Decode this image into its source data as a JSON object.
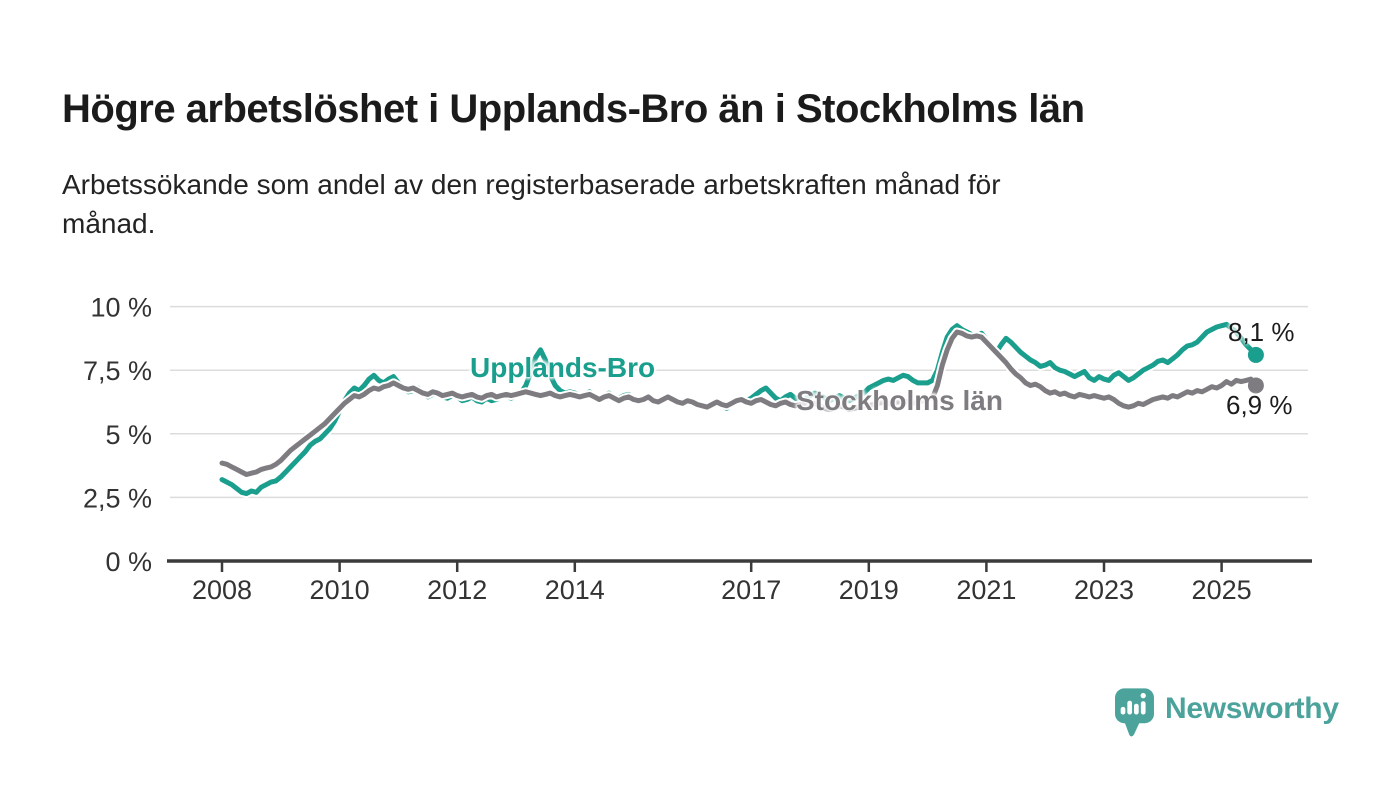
{
  "chart_data": {
    "type": "line",
    "title": "Högre arbetslöshet i Upplands-Bro än i Stockholms län",
    "subtitle": "Arbetssökande som andel av den registerbaserade arbetskraften månad för månad.",
    "subtitle_lines": [
      "Arbetssökande som andel av den registerbaserade arbetskraften månad för",
      "månad."
    ],
    "frequency": "monthly",
    "start_month": "2008-01",
    "end_month": "2025-08",
    "grid": true,
    "legend": "inline-labels",
    "y_axis": {
      "range": [
        0,
        10
      ],
      "ticks": [
        {
          "value": 10,
          "label": "10 %"
        },
        {
          "value": 7.5,
          "label": "7,5 %"
        },
        {
          "value": 5,
          "label": "5 %"
        },
        {
          "value": 2.5,
          "label": "2,5 %"
        },
        {
          "value": 0,
          "label": "0 %"
        }
      ]
    },
    "x_axis": {
      "ticks": [
        {
          "year": 2008,
          "label": "2008"
        },
        {
          "year": 2010,
          "label": "2010"
        },
        {
          "year": 2012,
          "label": "2012"
        },
        {
          "year": 2014,
          "label": "2014"
        },
        {
          "year": 2017,
          "label": "2017"
        },
        {
          "year": 2019,
          "label": "2019"
        },
        {
          "year": 2021,
          "label": "2021"
        },
        {
          "year": 2023,
          "label": "2023"
        },
        {
          "year": 2025,
          "label": "2025"
        }
      ]
    },
    "series": [
      {
        "name": "Upplands-Bro",
        "color": "#1a9e8d",
        "end_value": 8.1,
        "end_value_label": "8,1 %",
        "values": [
          3.2,
          3.1,
          3.0,
          2.85,
          2.7,
          2.65,
          2.75,
          2.7,
          2.9,
          3.0,
          3.1,
          3.15,
          3.3,
          3.5,
          3.7,
          3.9,
          4.1,
          4.3,
          4.55,
          4.7,
          4.8,
          5.0,
          5.2,
          5.5,
          5.9,
          6.3,
          6.6,
          6.8,
          6.7,
          6.9,
          7.15,
          7.3,
          7.1,
          7.0,
          7.15,
          7.25,
          7.0,
          6.85,
          6.65,
          6.7,
          6.8,
          6.6,
          6.45,
          6.55,
          6.6,
          6.45,
          6.4,
          6.5,
          6.45,
          6.3,
          6.35,
          6.45,
          6.3,
          6.25,
          6.4,
          6.3,
          6.35,
          6.45,
          6.5,
          6.4,
          6.5,
          6.6,
          6.9,
          7.4,
          8.0,
          8.3,
          7.9,
          7.3,
          6.9,
          6.7,
          6.6,
          6.65,
          6.6,
          6.5,
          6.55,
          6.65,
          6.5,
          6.4,
          6.5,
          6.6,
          6.45,
          6.4,
          6.5,
          6.55,
          6.4,
          6.3,
          6.4,
          6.5,
          6.35,
          6.3,
          6.4,
          6.5,
          6.4,
          6.3,
          6.2,
          6.3,
          6.2,
          6.1,
          6.05,
          6.0,
          6.1,
          6.2,
          6.1,
          6.0,
          6.15,
          6.3,
          6.4,
          6.3,
          6.4,
          6.55,
          6.7,
          6.8,
          6.6,
          6.4,
          6.3,
          6.45,
          6.55,
          6.4,
          6.3,
          6.4,
          6.5,
          6.6,
          6.5,
          6.4,
          6.3,
          6.4,
          6.5,
          6.4,
          6.3,
          6.4,
          6.5,
          6.6,
          6.8,
          6.9,
          7.0,
          7.1,
          7.15,
          7.1,
          7.2,
          7.3,
          7.25,
          7.1,
          7.0,
          7.0,
          7.0,
          7.1,
          7.5,
          8.2,
          8.8,
          9.1,
          9.25,
          9.1,
          9.0,
          8.9,
          8.85,
          8.95,
          8.7,
          8.45,
          8.2,
          8.5,
          8.75,
          8.6,
          8.4,
          8.2,
          8.05,
          7.9,
          7.8,
          7.65,
          7.7,
          7.8,
          7.6,
          7.5,
          7.45,
          7.35,
          7.25,
          7.35,
          7.45,
          7.2,
          7.1,
          7.25,
          7.15,
          7.1,
          7.3,
          7.4,
          7.25,
          7.1,
          7.2,
          7.35,
          7.5,
          7.6,
          7.7,
          7.85,
          7.9,
          7.8,
          7.95,
          8.1,
          8.3,
          8.45,
          8.5,
          8.6,
          8.8,
          9.0,
          9.1,
          9.2,
          9.25,
          9.3,
          9.15,
          9.0,
          8.75,
          8.5,
          8.3,
          8.1
        ]
      },
      {
        "name": "Stockholms län",
        "color": "#7e7c80",
        "end_value": 6.9,
        "end_value_label": "6,9 %",
        "values": [
          3.85,
          3.8,
          3.7,
          3.6,
          3.5,
          3.4,
          3.45,
          3.5,
          3.6,
          3.65,
          3.7,
          3.8,
          3.95,
          4.15,
          4.35,
          4.5,
          4.65,
          4.8,
          4.95,
          5.1,
          5.25,
          5.4,
          5.6,
          5.8,
          6.0,
          6.2,
          6.35,
          6.5,
          6.45,
          6.55,
          6.7,
          6.8,
          6.75,
          6.85,
          6.9,
          7.0,
          6.9,
          6.8,
          6.75,
          6.8,
          6.7,
          6.6,
          6.55,
          6.65,
          6.6,
          6.5,
          6.55,
          6.6,
          6.5,
          6.45,
          6.5,
          6.55,
          6.45,
          6.4,
          6.5,
          6.55,
          6.45,
          6.5,
          6.55,
          6.5,
          6.55,
          6.6,
          6.65,
          6.6,
          6.55,
          6.5,
          6.55,
          6.6,
          6.5,
          6.45,
          6.5,
          6.55,
          6.5,
          6.45,
          6.5,
          6.55,
          6.45,
          6.35,
          6.45,
          6.5,
          6.4,
          6.3,
          6.4,
          6.45,
          6.35,
          6.3,
          6.35,
          6.45,
          6.3,
          6.25,
          6.35,
          6.45,
          6.35,
          6.25,
          6.2,
          6.3,
          6.25,
          6.15,
          6.1,
          6.05,
          6.15,
          6.25,
          6.15,
          6.1,
          6.2,
          6.3,
          6.35,
          6.25,
          6.2,
          6.3,
          6.35,
          6.25,
          6.15,
          6.1,
          6.2,
          6.25,
          6.15,
          6.1,
          6.15,
          6.2,
          6.15,
          6.2,
          6.1,
          6.0,
          5.95,
          6.0,
          6.1,
          6.05,
          5.95,
          6.0,
          6.05,
          6.1,
          6.1,
          6.15,
          6.2,
          6.25,
          6.2,
          6.15,
          6.25,
          6.3,
          6.25,
          6.2,
          6.25,
          6.3,
          6.35,
          6.4,
          6.9,
          7.7,
          8.3,
          8.75,
          9.0,
          8.95,
          8.85,
          8.8,
          8.85,
          8.8,
          8.6,
          8.4,
          8.2,
          8.0,
          7.8,
          7.55,
          7.35,
          7.2,
          7.0,
          6.9,
          6.95,
          6.85,
          6.7,
          6.6,
          6.65,
          6.55,
          6.6,
          6.5,
          6.45,
          6.55,
          6.5,
          6.45,
          6.5,
          6.45,
          6.4,
          6.45,
          6.35,
          6.2,
          6.1,
          6.05,
          6.1,
          6.2,
          6.15,
          6.25,
          6.35,
          6.4,
          6.45,
          6.4,
          6.5,
          6.45,
          6.55,
          6.65,
          6.6,
          6.7,
          6.65,
          6.75,
          6.85,
          6.8,
          6.9,
          7.05,
          6.95,
          7.1,
          7.05,
          7.1,
          7.15,
          6.9
        ]
      }
    ]
  },
  "branding": {
    "name": "Newsworthy",
    "color": "#4ba39c",
    "icon": "newsworthy-logo-icon"
  }
}
